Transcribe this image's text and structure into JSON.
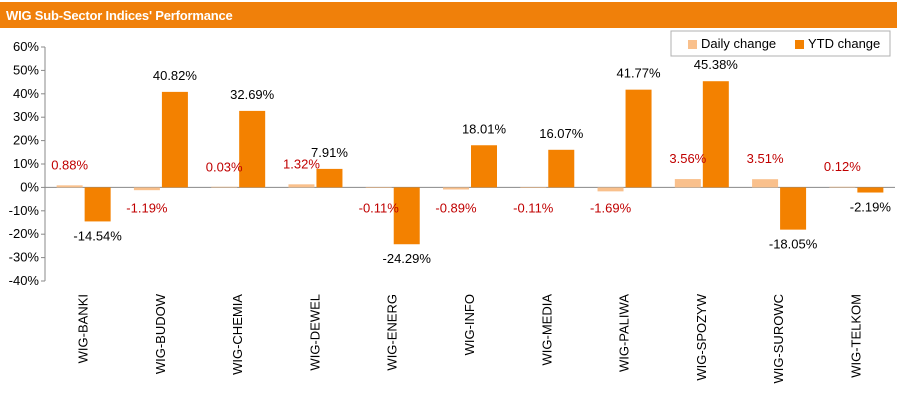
{
  "header": {
    "title": "WIG Sub-Sector Indices' Performance"
  },
  "colors": {
    "header_bg": "#F0800A",
    "daily": "#F9C08C",
    "ytd": "#F38100",
    "daily_label": "#C00000",
    "ytd_label": "#000000"
  },
  "chart_data": {
    "type": "bar",
    "title": "WIG Sub-Sector Indices' Performance",
    "categories": [
      "WIG-BANKI",
      "WIG-BUDOW",
      "WIG-CHEMIA",
      "WIG-DEWEL",
      "WIG-ENERG",
      "WIG-INFO",
      "WIG-MEDIA",
      "WIG-PALIWA",
      "WIG-SPOZYW",
      "WIG-SUROWC",
      "WIG-TELKOM"
    ],
    "series": [
      {
        "name": "Daily change",
        "values": [
          0.88,
          -1.19,
          0.03,
          1.32,
          -0.11,
          -0.89,
          -0.11,
          -1.69,
          3.56,
          3.51,
          0.12
        ],
        "labels": [
          "0.88%",
          "-1.19%",
          "0.03%",
          "1.32%",
          "-0.11%",
          "-0.89%",
          "-0.11%",
          "-1.69%",
          "3.56%",
          "3.51%",
          "0.12%"
        ]
      },
      {
        "name": "YTD change",
        "values": [
          -14.54,
          40.82,
          32.69,
          7.91,
          -24.29,
          18.01,
          16.07,
          41.77,
          45.38,
          -18.05,
          -2.19
        ],
        "labels": [
          "-14.54%",
          "40.82%",
          "32.69%",
          "7.91%",
          "-24.29%",
          "18.01%",
          "16.07%",
          "41.77%",
          "45.38%",
          "-18.05%",
          "-2.19%"
        ]
      }
    ],
    "ylim": [
      -40,
      60
    ],
    "yticks": [
      "-40%",
      "-30%",
      "-20%",
      "-10%",
      "0%",
      "10%",
      "20%",
      "30%",
      "40%",
      "50%",
      "60%"
    ],
    "ytick_values": [
      -40,
      -30,
      -20,
      -10,
      0,
      10,
      20,
      30,
      40,
      50,
      60
    ],
    "grid": false,
    "legend": "top-right",
    "xlabel": "",
    "ylabel": ""
  }
}
